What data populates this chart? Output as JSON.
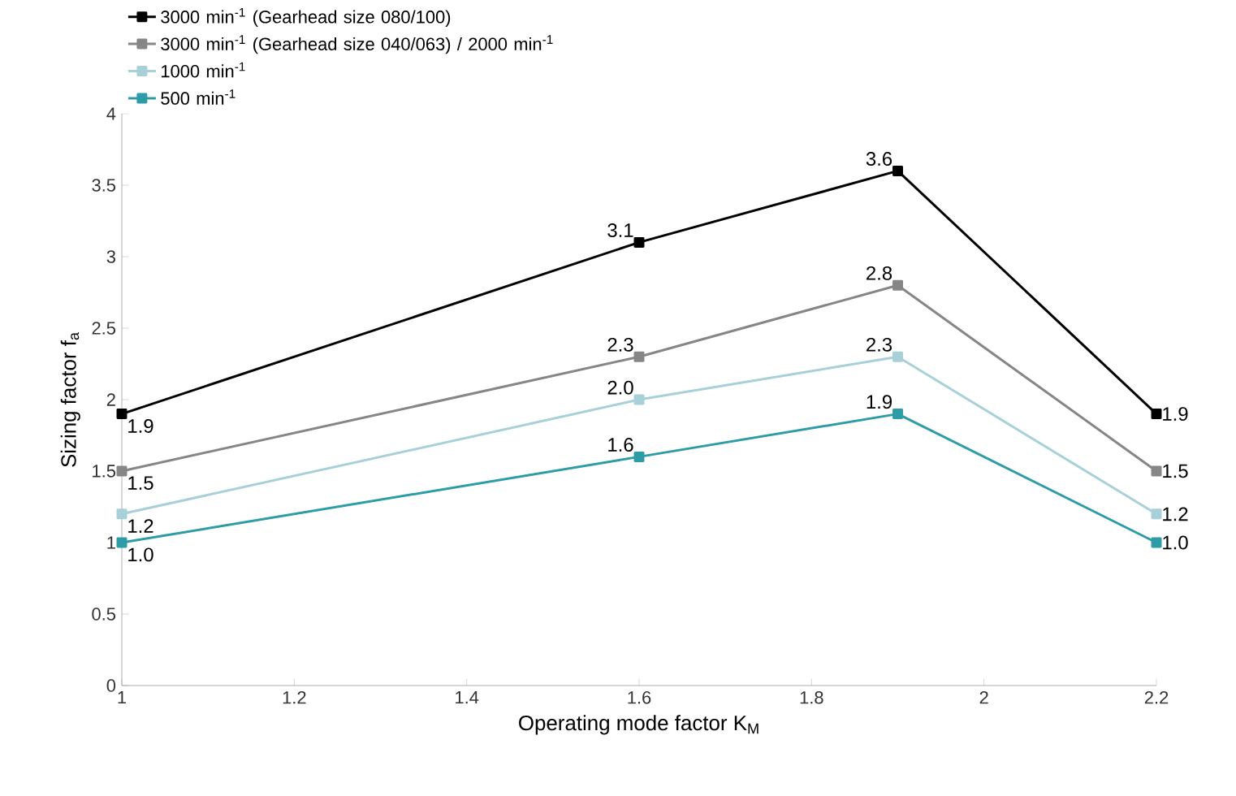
{
  "chart_data": {
    "type": "line",
    "xlabel": "Operating mode factor K$_{M}$",
    "ylabel": "Sizing factor f$_{a}$",
    "x": [
      1,
      1.6,
      1.9,
      2.2
    ],
    "series": [
      {
        "name": "3000 min$^{-1}$ (Gearhead size 080/100)",
        "color": "#000000",
        "values": [
          1.9,
          3.1,
          3.6,
          1.9
        ],
        "value_labels": [
          "1.9",
          "3.1",
          "3.6",
          "1.9"
        ]
      },
      {
        "name": "3000 min$^{-1}$ (Gearhead size 040/063) / 2000 min$^{-1}$",
        "color": "#868686",
        "values": [
          1.5,
          2.3,
          2.8,
          1.5
        ],
        "value_labels": [
          "1.5",
          "2.3",
          "2.8",
          "1.5"
        ]
      },
      {
        "name": "1000 min$^{-1}$",
        "color": "#a8d0d8",
        "values": [
          1.2,
          2.0,
          2.3,
          1.2
        ],
        "value_labels": [
          "1.2",
          "2.0",
          "2.3",
          "1.2"
        ]
      },
      {
        "name": "500 min$^{-1}$",
        "color": "#2e9ca6",
        "values": [
          1.0,
          1.6,
          1.9,
          1.0
        ],
        "value_labels": [
          "1.0",
          "1.6",
          "1.9",
          "1.0"
        ]
      }
    ],
    "xlim": [
      1,
      2.2
    ],
    "xticks": [
      1,
      1.2,
      1.4,
      1.6,
      1.8,
      2,
      2.2
    ],
    "ylim": [
      0,
      4
    ],
    "yticks": [
      0,
      0.5,
      1,
      1.5,
      2,
      2.5,
      3,
      3.5,
      4
    ],
    "marker": "square",
    "legend": "top left",
    "grid": false,
    "line_style": "solid"
  }
}
